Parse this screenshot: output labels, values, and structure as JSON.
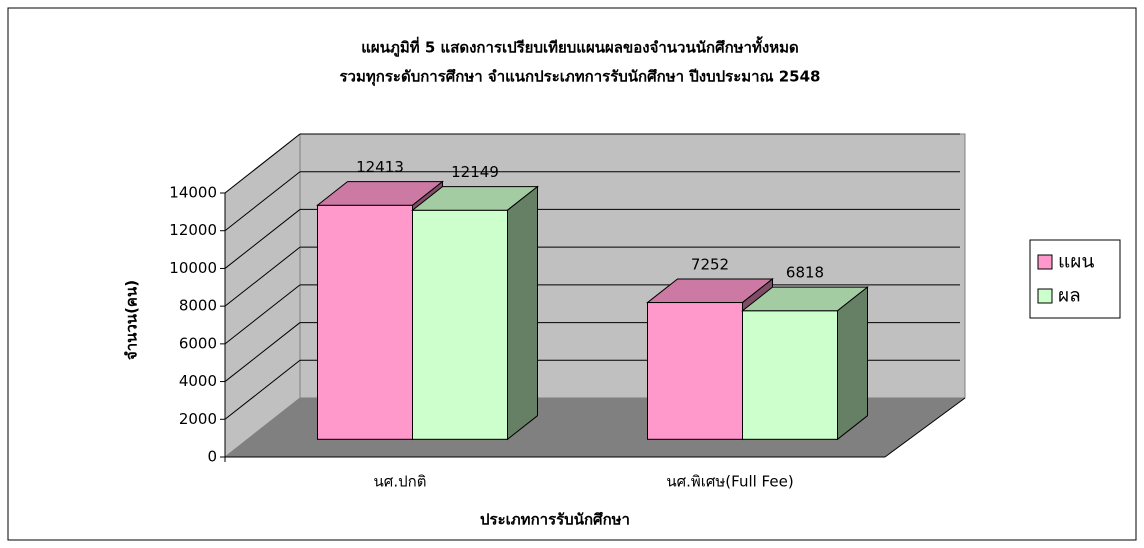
{
  "chart_data": {
    "type": "bar",
    "title": "แผนภูมิที่ 5 แสดงการเปรียบเทียบแผนผลของจำนวนนักศึกษาทั้งหมด",
    "subtitle": "รวมทุกระดับการศึกษา จำแนกประเภทการรับนักศึกษา ปีงบประมาณ 2548",
    "x_label": "ประเภทการรับนักศึกษา",
    "y_label": "จำนวน(คน)",
    "categories": [
      "นศ.ปกติ",
      "นศ.พิเศษ(Full Fee)"
    ],
    "series": [
      {
        "name": "แผน",
        "color": "#ff99cc",
        "values": [
          12413,
          7252
        ]
      },
      {
        "name": "ผล",
        "color": "#ccffcc",
        "values": [
          12149,
          6818
        ]
      }
    ],
    "ylim": [
      0,
      14000
    ],
    "yticks": [
      0,
      2000,
      4000,
      6000,
      8000,
      10000,
      12000,
      14000
    ],
    "grid": true,
    "legend": "right"
  }
}
